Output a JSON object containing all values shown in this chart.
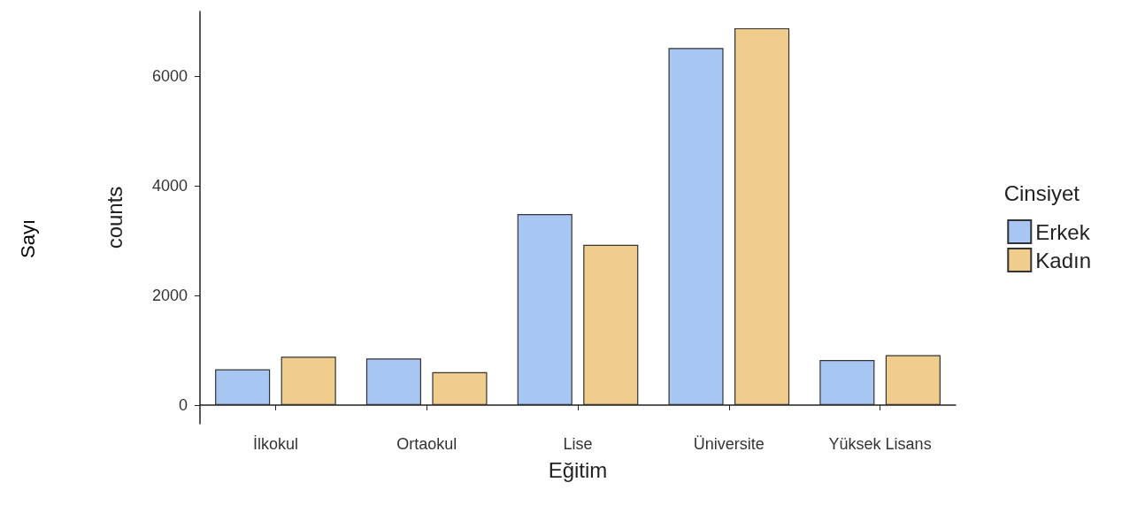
{
  "chart_data": {
    "type": "bar",
    "xlabel": "Eğitim",
    "ylabel": "counts",
    "legend_title": "Cinsiyet",
    "annotations": [
      "Sayı"
    ],
    "categories": [
      "İlkokul",
      "Ortaokul",
      "Lise",
      "Üniversite",
      "Yüksek Lisans"
    ],
    "series": [
      {
        "name": "Erkek",
        "color": "#a8c6f2",
        "values": [
          650,
          850,
          3480,
          6510,
          820
        ]
      },
      {
        "name": "Kadın",
        "color": "#f0cd8c",
        "values": [
          880,
          600,
          2920,
          6870,
          910
        ]
      }
    ],
    "ylim": [
      -340,
      7175
    ],
    "yticks": [
      0,
      2000,
      4000,
      6000
    ],
    "grid": false,
    "legend": "right"
  }
}
